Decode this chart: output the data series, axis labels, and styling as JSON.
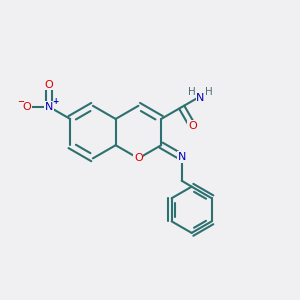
{
  "bg_color": "#f0f0f2",
  "bond_color": "#2d7070",
  "atom_colors": {
    "O": "#dd0000",
    "N": "#0000bb",
    "C": "#2d7070",
    "H": "#507070"
  },
  "bond_lw": 1.5,
  "font_size": 8.0,
  "bl": 0.088
}
